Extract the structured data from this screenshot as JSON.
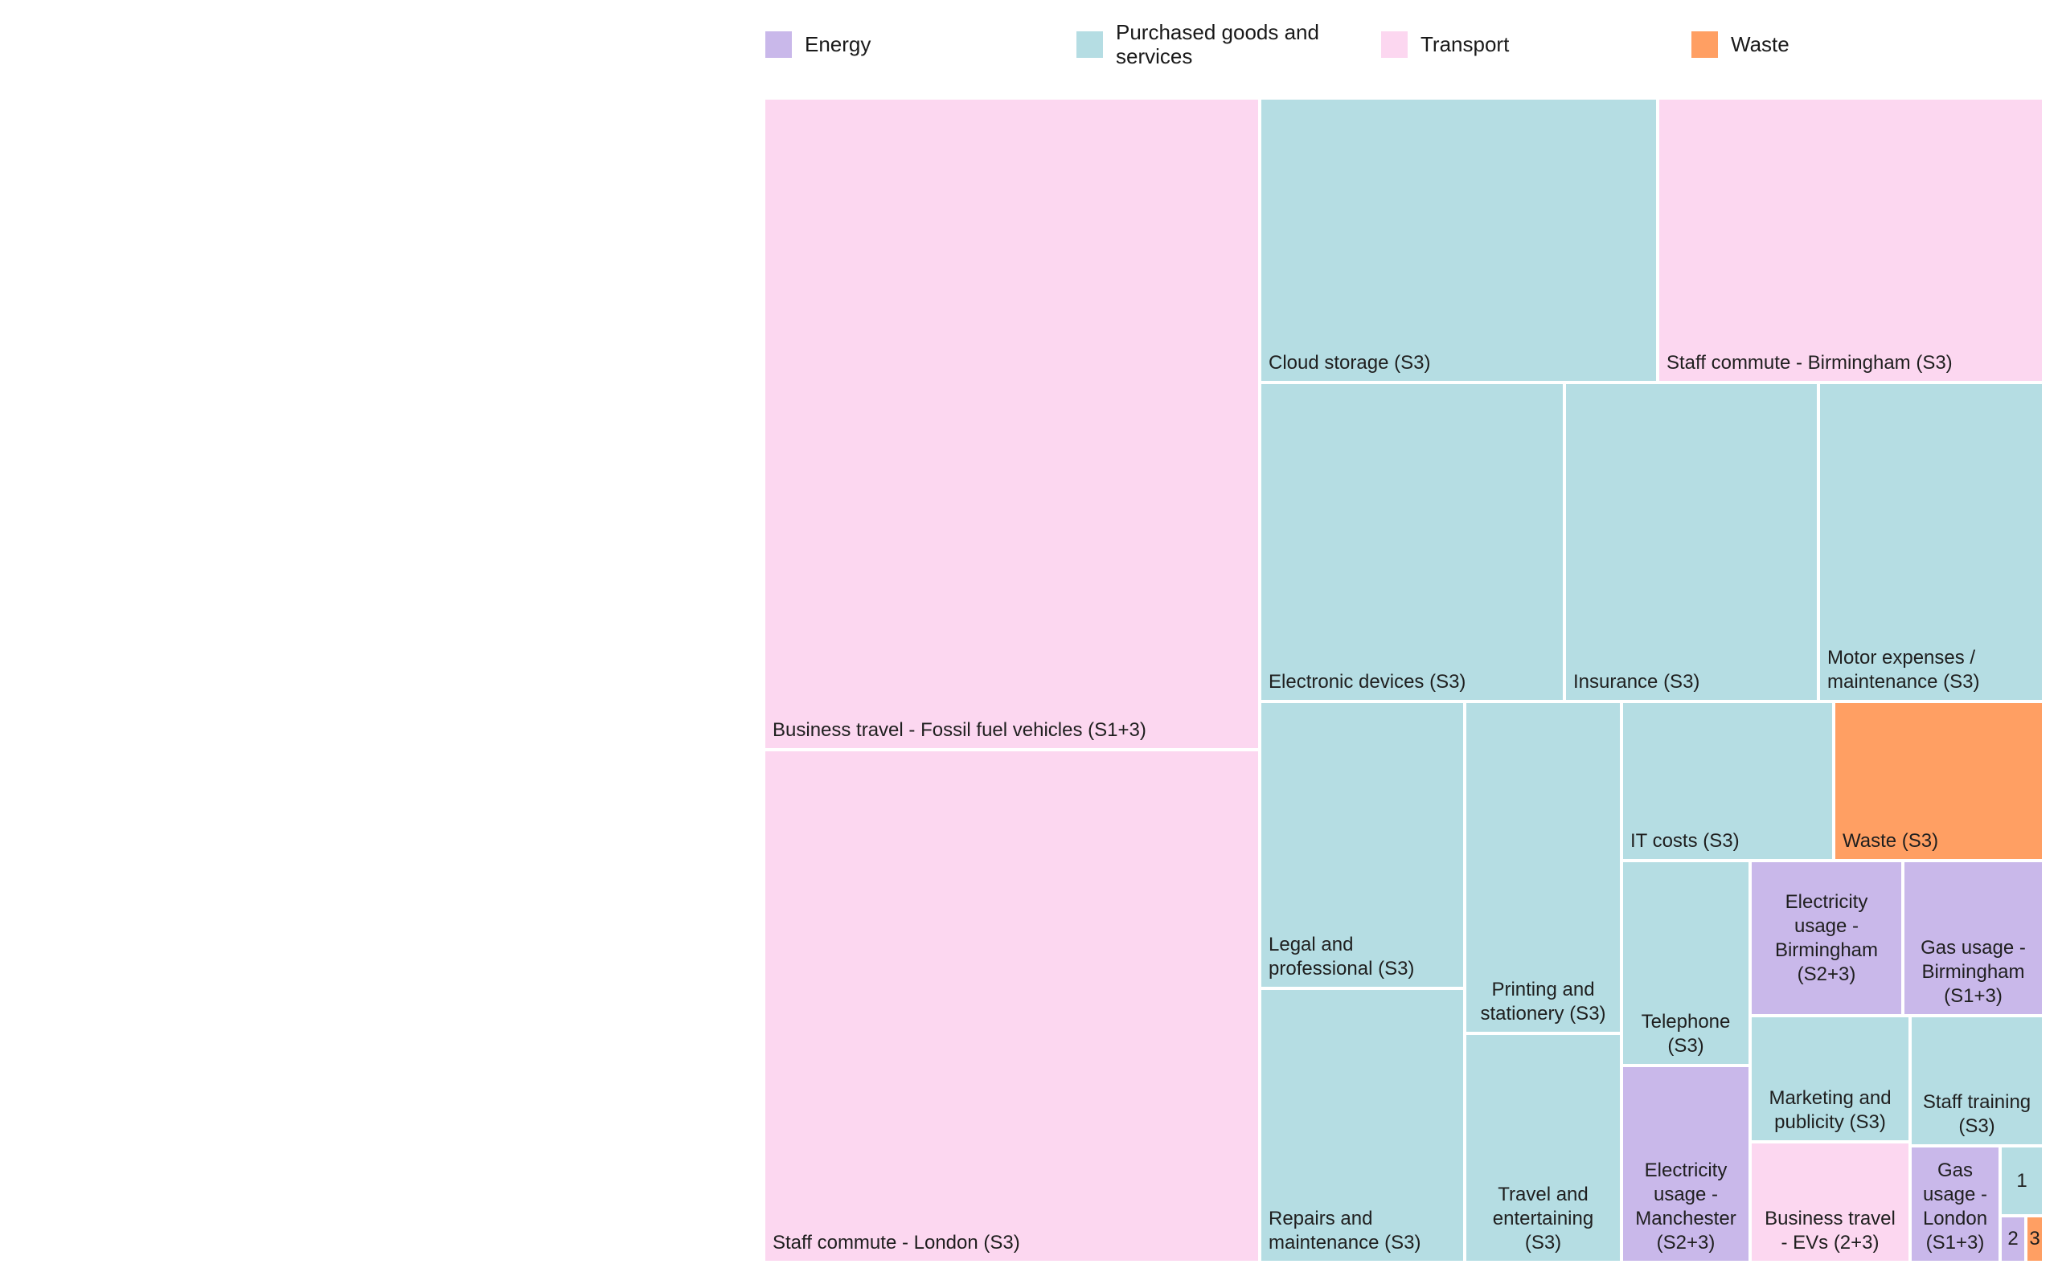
{
  "chart_data": {
    "type": "treemap",
    "legend": [
      {
        "name": "Energy",
        "color": "#c9b8ea"
      },
      {
        "name": "Purchased goods and services",
        "color": "#b5dde3"
      },
      {
        "name": "Transport",
        "color": "#fcd7f0"
      },
      {
        "name": "Waste",
        "color": "#ff9f63"
      }
    ],
    "tiles": [
      {
        "label": "Business travel - Fossil fuel vehicles (S1+3)",
        "category": "Transport",
        "value": 18.4
      },
      {
        "label": "Staff commute - London (S3)",
        "category": "Transport",
        "value": 14.6
      },
      {
        "label": "Cloud storage (S3)",
        "category": "Purchased goods and services",
        "value": 6.5
      },
      {
        "label": "Staff commute - Birmingham (S3)",
        "category": "Transport",
        "value": 6.3
      },
      {
        "label": "Electronic devices (S3)",
        "category": "Purchased goods and services",
        "value": 5.5
      },
      {
        "label": "Insurance (S3)",
        "category": "Purchased goods and services",
        "value": 4.6
      },
      {
        "label": "Motor expenses / maintenance (S3)",
        "category": "Purchased goods and services",
        "value": 4.1
      },
      {
        "label": "Legal and professional (S3)",
        "category": "Purchased goods and services",
        "value": 3.4
      },
      {
        "label": "Repairs and maintenance (S3)",
        "category": "Purchased goods and services",
        "value": 3.4
      },
      {
        "label": "Printing and stationery (S3)",
        "category": "Purchased goods and services",
        "value": 3.0
      },
      {
        "label": "Travel and entertaining (S3)",
        "category": "Purchased goods and services",
        "value": 2.2
      },
      {
        "label": "IT costs (S3)",
        "category": "Purchased goods and services",
        "value": 1.9
      },
      {
        "label": "Waste (S3)",
        "category": "Waste",
        "value": 1.9
      },
      {
        "label": "Telephone (S3)",
        "category": "Purchased goods and services",
        "value": 1.5
      },
      {
        "label": "Electricity usage - Manchester (S2+3)",
        "category": "Energy",
        "value": 1.5
      },
      {
        "label": "Electricity usage - Birmingham (S2+3)",
        "category": "Energy",
        "value": 1.3
      },
      {
        "label": "Gas usage - Birmingham (S1+3)",
        "category": "Energy",
        "value": 1.3
      },
      {
        "label": "Marketing and publicity (S3)",
        "category": "Purchased goods and services",
        "value": 1.1
      },
      {
        "label": "Business travel - EVs (2+3)",
        "category": "Transport",
        "value": 1.1
      },
      {
        "label": "Staff training (S3)",
        "category": "Purchased goods and services",
        "value": 1.0
      },
      {
        "label": "Gas usage - London (S1+3)",
        "category": "Energy",
        "value": 0.6
      },
      {
        "label": "1",
        "category": "Purchased goods and services",
        "value": 0.2
      },
      {
        "label": "2",
        "category": "Energy",
        "value": 0.1
      },
      {
        "label": "3",
        "category": "Waste",
        "value": 0.1
      }
    ]
  }
}
